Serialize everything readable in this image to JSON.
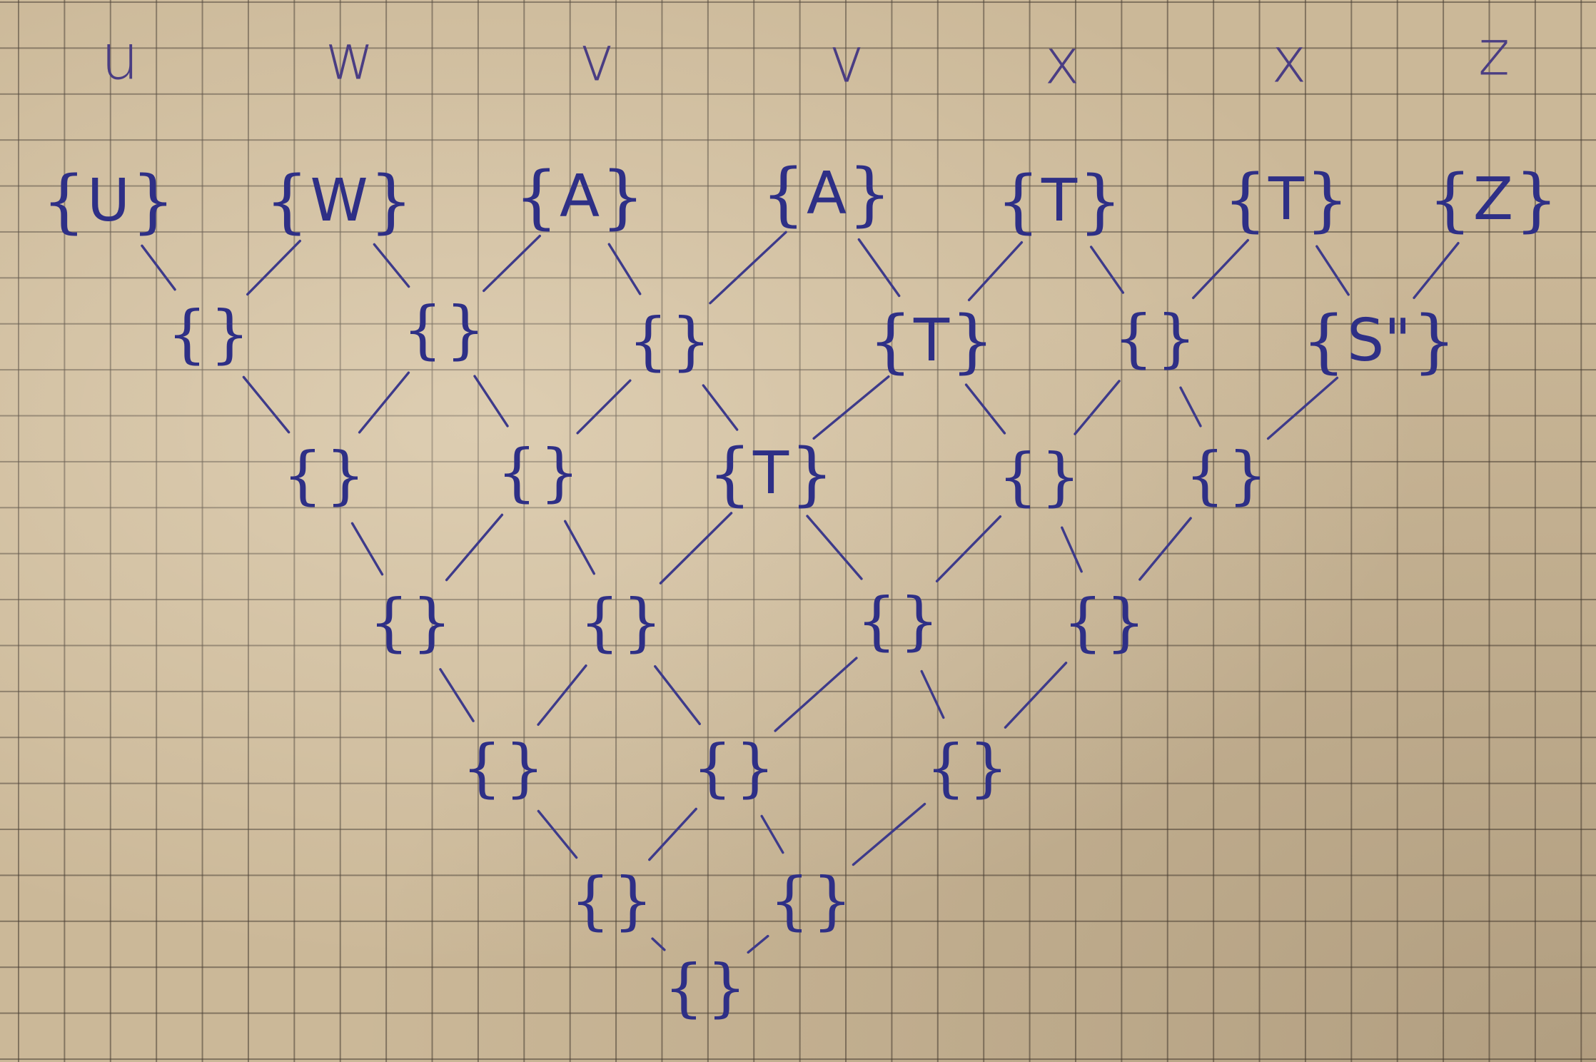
{
  "column_labels": [
    "u",
    "w",
    "v",
    "v",
    "x",
    "x",
    "z"
  ],
  "colors": {
    "ink": "#2e2f86",
    "label_ink": "#4a3d83",
    "paper": "#cbb898",
    "grid": "#46403a"
  },
  "lattice": {
    "rows": [
      [
        "U",
        "W",
        "A",
        "A",
        "T",
        "T",
        "Z"
      ],
      [
        "",
        "",
        "",
        "T",
        "",
        "S\""
      ],
      [
        "",
        "",
        "T",
        "",
        ""
      ],
      [
        "",
        "",
        "",
        ""
      ],
      [
        "",
        "",
        ""
      ],
      [
        "",
        ""
      ],
      [
        ""
      ]
    ]
  }
}
